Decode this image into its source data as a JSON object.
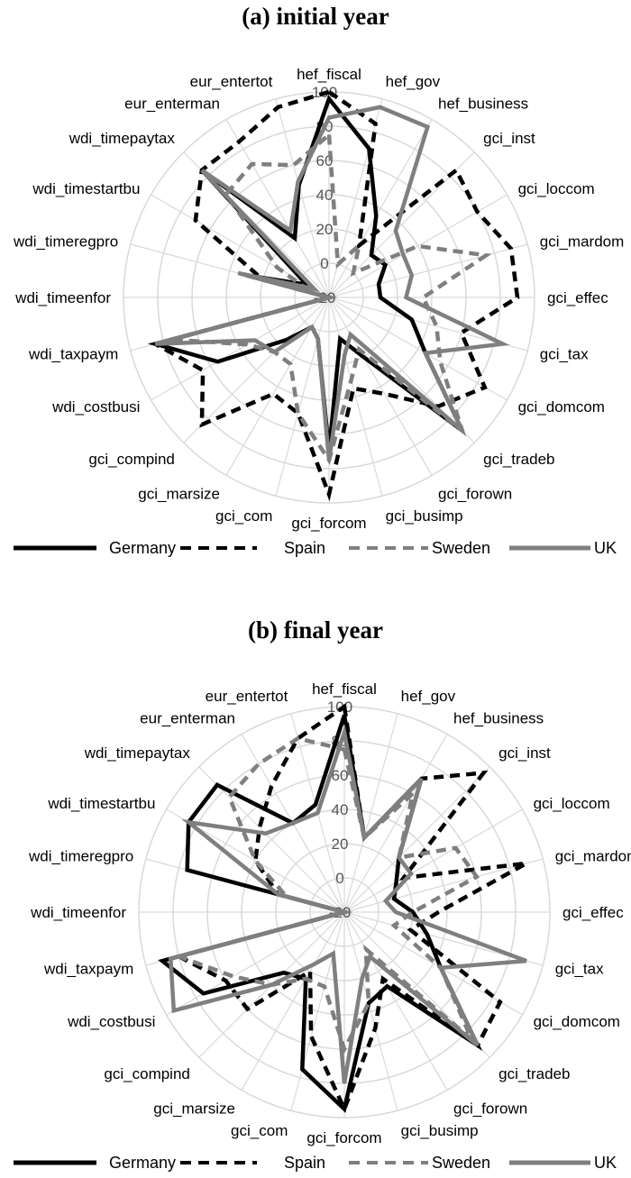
{
  "chart_data": [
    {
      "type": "radar",
      "title": "(a) initial year",
      "categories": [
        "hef_fiscal",
        "hef_gov",
        "hef_business",
        "gci_inst",
        "gci_loccom",
        "gci_mardom",
        "gci_effec",
        "gci_tax",
        "gci_domcom",
        "gci_tradeb",
        "gci_forown",
        "gci_busimp",
        "gci_forcom",
        "gci_com",
        "gci_marsize",
        "gci_compind",
        "wdi_costbusi",
        "wdi_taxpaym",
        "wdi_timeenfor",
        "wdi_timeregpro",
        "wdi_timestartbu",
        "wdi_timepaytax",
        "eur_enterman",
        "eur_entertot"
      ],
      "rlim": [
        -20,
        100
      ],
      "rticks": [
        -20,
        0,
        20,
        40,
        60,
        80,
        100
      ],
      "series": [
        {
          "name": "Germany",
          "values": [
            96,
            70,
            35,
            15,
            18,
            10,
            10,
            30,
            45,
            90,
            20,
            5,
            70,
            5,
            0,
            15,
            55,
            85,
            -20,
            30,
            -5,
            85,
            20,
            48
          ]
        },
        {
          "name": "Spain",
          "values": [
            100,
            85,
            15,
            85,
            80,
            90,
            90,
            60,
            85,
            70,
            45,
            35,
            95,
            50,
            45,
            85,
            65,
            85,
            -20,
            20,
            70,
            85,
            85,
            95
          ]
        },
        {
          "name": "Sweden",
          "values": [
            75,
            0,
            15,
            0,
            40,
            75,
            35,
            45,
            55,
            90,
            15,
            30,
            75,
            50,
            25,
            25,
            35,
            75,
            -20,
            -10,
            15,
            65,
            70,
            60
          ]
        },
        {
          "name": "UK",
          "values": [
            85,
            95,
            95,
            35,
            30,
            30,
            25,
            85,
            45,
            90,
            5,
            15,
            75,
            5,
            0,
            25,
            30,
            85,
            -20,
            35,
            -10,
            85,
            25,
            50
          ]
        }
      ]
    },
    {
      "type": "radar",
      "title": "(b) final year",
      "categories": [
        "hef_fiscal",
        "hef_gov",
        "hef_business",
        "gci_inst",
        "gci_loccom",
        "gci_mardom",
        "gci_effec",
        "gci_tax",
        "gci_domcom",
        "gci_tradeb",
        "gci_forown",
        "gci_busimp",
        "gci_forcom",
        "gci_com",
        "gci_marsize",
        "gci_compind",
        "wdi_costbusi",
        "wdi_taxpaym",
        "wdi_timeenfor",
        "wdi_timeregpro",
        "wdi_timestartbu",
        "wdi_timepaytax",
        "eur_enterman",
        "eur_entertot"
      ],
      "rlim": [
        -20,
        100
      ],
      "rticks": [
        -20,
        0,
        20,
        40,
        60,
        80,
        100
      ],
      "series": [
        {
          "name": "Germany",
          "values": [
            95,
            25,
            70,
            25,
            15,
            10,
            20,
            30,
            45,
            90,
            30,
            35,
            95,
            75,
            25,
            30,
            75,
            90,
            -20,
            75,
            85,
            85,
            40,
            45
          ]
        },
        {
          "name": "Spain",
          "values": [
            100,
            25,
            70,
            95,
            20,
            90,
            35,
            20,
            85,
            90,
            25,
            50,
            95,
            55,
            20,
            60,
            60,
            80,
            -20,
            20,
            40,
            50,
            65,
            85
          ]
        },
        {
          "name": "Sweden",
          "values": [
            75,
            25,
            60,
            25,
            55,
            60,
            20,
            10,
            45,
            85,
            5,
            35,
            60,
            25,
            25,
            40,
            55,
            80,
            -20,
            15,
            40,
            75,
            80,
            85
          ]
        },
        {
          "name": "UK",
          "values": [
            85,
            25,
            70,
            25,
            25,
            5,
            10,
            90,
            45,
            90,
            10,
            20,
            80,
            5,
            15,
            40,
            95,
            85,
            -20,
            20,
            85,
            45,
            40,
            40
          ]
        }
      ]
    }
  ],
  "colors": {
    "Germany": "#000000",
    "Spain": "#000000",
    "Sweden": "#7f7f7f",
    "UK": "#7f7f7f",
    "grid": "#d9d9d9",
    "tick": "#555555"
  },
  "series_styles": {
    "Germany": "solid",
    "Spain": "dashed",
    "Sweden": "dashed",
    "UK": "solid"
  }
}
